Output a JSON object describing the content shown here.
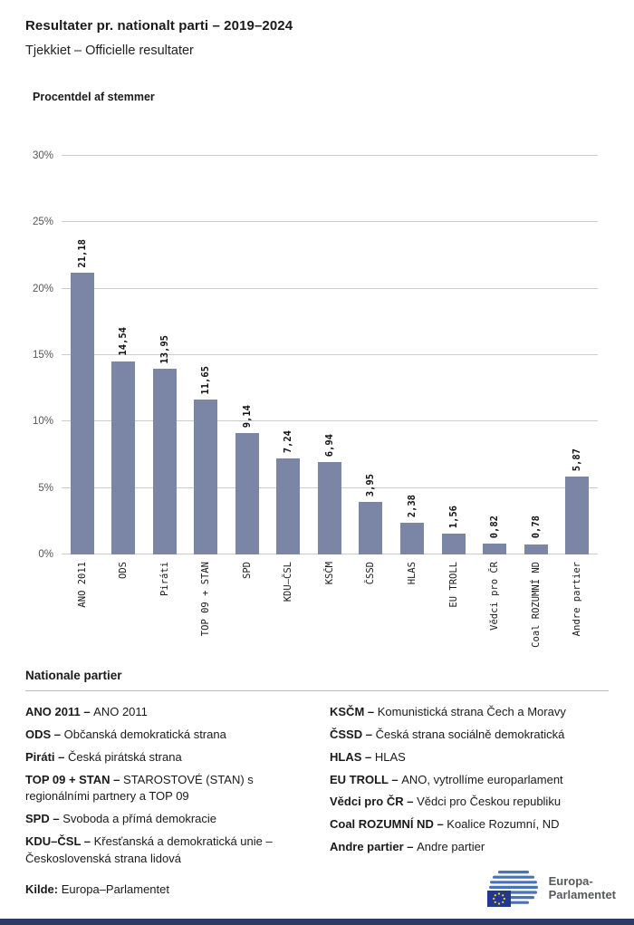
{
  "header": {
    "title": "Resultater pr. nationalt parti – 2019–2024",
    "subtitle": "Tjekkiet – Officielle resultater"
  },
  "chart_data": {
    "type": "bar",
    "title": "Procentdel af stemmer",
    "categories": [
      "ANO 2011",
      "ODS",
      "Piráti",
      "TOP 09 + STAN",
      "SPD",
      "KDU–ČSL",
      "KSČM",
      "ČSSD",
      "HLAS",
      "EU TROLL",
      "Vědci pro ČR",
      "Coal ROZUMNÍ ND",
      "Andre partier"
    ],
    "values": [
      21.18,
      14.54,
      13.95,
      11.65,
      9.14,
      7.24,
      6.94,
      3.95,
      2.38,
      1.56,
      0.82,
      0.78,
      5.87
    ],
    "value_labels": [
      "21,18",
      "14,54",
      "13,95",
      "11,65",
      "9,14",
      "7,24",
      "6,94",
      "3,95",
      "2,38",
      "1,56",
      "0,82",
      "0,78",
      "5,87"
    ],
    "ylim": [
      0,
      30
    ],
    "yticks": [
      "0%",
      "5%",
      "10%",
      "15%",
      "20%",
      "25%",
      "30%"
    ],
    "grid": true,
    "legend_position": "none",
    "bar_color": "#7b86a7",
    "xlabel": "",
    "ylabel": "Procentdel af stemmer"
  },
  "legend": {
    "heading": "Nationale partier",
    "left": [
      {
        "abbr": "ANO 2011",
        "full": "ANO 2011"
      },
      {
        "abbr": "ODS",
        "full": "Občanská demokratická strana"
      },
      {
        "abbr": "Piráti",
        "full": "Česká pirátská strana"
      },
      {
        "abbr": "TOP 09 + STAN",
        "full": "STAROSTOVÉ (STAN) s regionálními partnery a TOP 09"
      },
      {
        "abbr": "SPD",
        "full": "Svoboda a přímá demokracie"
      },
      {
        "abbr": "KDU–ČSL",
        "full": "Křesťanská a demokratická unie – Československá strana lidová"
      }
    ],
    "right": [
      {
        "abbr": "KSČM",
        "full": "Komunistická strana Čech a Moravy"
      },
      {
        "abbr": "ČSSD",
        "full": "Česká strana sociálně demokratická"
      },
      {
        "abbr": "HLAS",
        "full": "HLAS"
      },
      {
        "abbr": "EU TROLL",
        "full": "ANO, vytrollíme europarlament"
      },
      {
        "abbr": "Vědci pro ČR",
        "full": "Vědci pro Českou republiku"
      },
      {
        "abbr": "Coal ROZUMNÍ ND",
        "full": "Koalice Rozumní, ND"
      },
      {
        "abbr": "Andre partier",
        "full": "Andre partier"
      }
    ]
  },
  "footer": {
    "source_label": "Kilde:",
    "source": "Europa–Parlamentet",
    "logo_line1": "Europa-",
    "logo_line2": "Parlamentet"
  }
}
